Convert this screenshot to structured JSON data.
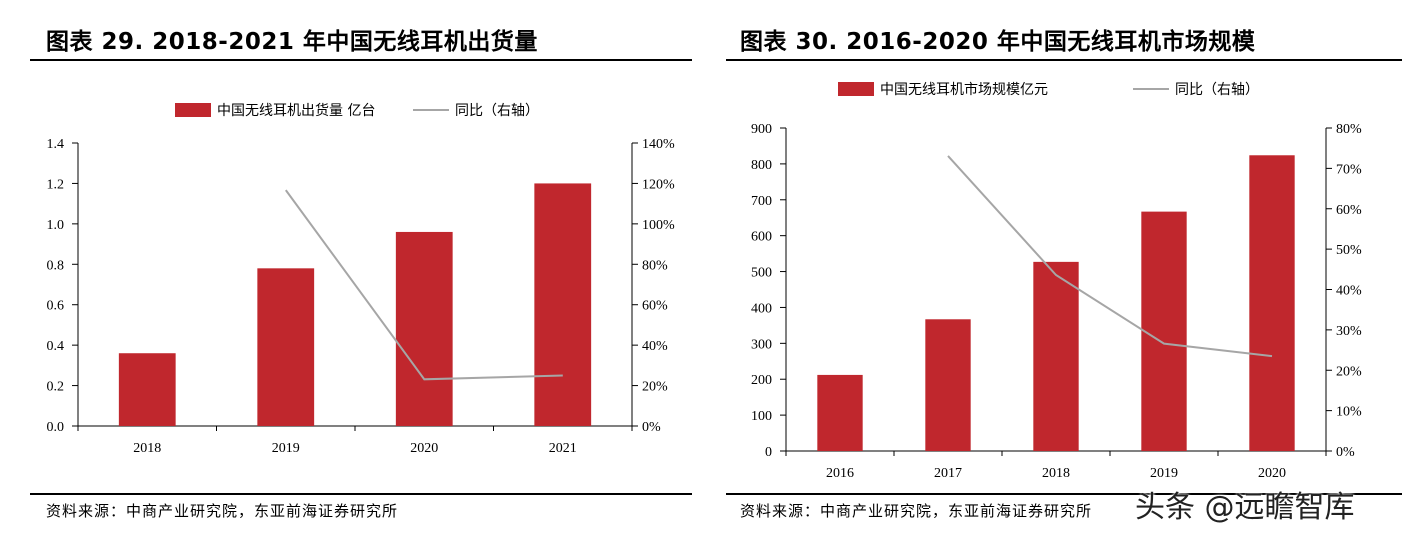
{
  "charts": [
    {
      "title": "图表 29. 2018-2021 年中国无线耳机出货量",
      "source": "资料来源：中商产业研究院，东亚前海证券研究所"
    },
    {
      "title": "图表 30. 2016-2020 年中国无线耳机市场规模",
      "source": "资料来源：中商产业研究院，东亚前海证券研究所"
    }
  ],
  "watermark": "头条 @远瞻智库",
  "colors": {
    "bar": "#c0272d",
    "line": "#a6a6a6",
    "axis": "#000000"
  },
  "chart_data": [
    {
      "type": "bar",
      "title": "图表 29. 2018-2021 年中国无线耳机出货量",
      "categories": [
        "2018",
        "2019",
        "2020",
        "2021"
      ],
      "series": [
        {
          "name": "中国无线耳机出货量 亿台",
          "type": "bar",
          "axis": "left",
          "values": [
            0.36,
            0.78,
            0.96,
            1.2
          ]
        },
        {
          "name": "同比（右轴）",
          "type": "line",
          "axis": "right",
          "values": [
            null,
            116.7,
            23.1,
            25.0
          ]
        }
      ],
      "ylim_left": [
        0,
        1.4
      ],
      "yticks_left": [
        "0.0",
        "0.2",
        "0.4",
        "0.6",
        "0.8",
        "1.0",
        "1.2",
        "1.4"
      ],
      "ylim_right": [
        0,
        140
      ],
      "yticks_right": [
        "0%",
        "20%",
        "40%",
        "60%",
        "80%",
        "100%",
        "120%",
        "140%"
      ],
      "legend": "top-center",
      "grid": false
    },
    {
      "type": "bar",
      "title": "图表 30. 2016-2020 年中国无线耳机市场规模",
      "categories": [
        "2016",
        "2017",
        "2018",
        "2019",
        "2020"
      ],
      "series": [
        {
          "name": "中国无线耳机市场规模亿元",
          "type": "bar",
          "axis": "left",
          "values": [
            212,
            367,
            527,
            667,
            824
          ]
        },
        {
          "name": "同比（右轴）",
          "type": "line",
          "axis": "right",
          "values": [
            null,
            73.1,
            43.6,
            26.6,
            23.5
          ]
        }
      ],
      "ylim_left": [
        0,
        900
      ],
      "yticks_left": [
        "0",
        "100",
        "200",
        "300",
        "400",
        "500",
        "600",
        "700",
        "800",
        "900"
      ],
      "ylim_right": [
        0,
        80
      ],
      "yticks_right": [
        "0%",
        "10%",
        "20%",
        "30%",
        "40%",
        "50%",
        "60%",
        "70%",
        "80%"
      ],
      "legend": "top-center",
      "grid": false
    }
  ]
}
